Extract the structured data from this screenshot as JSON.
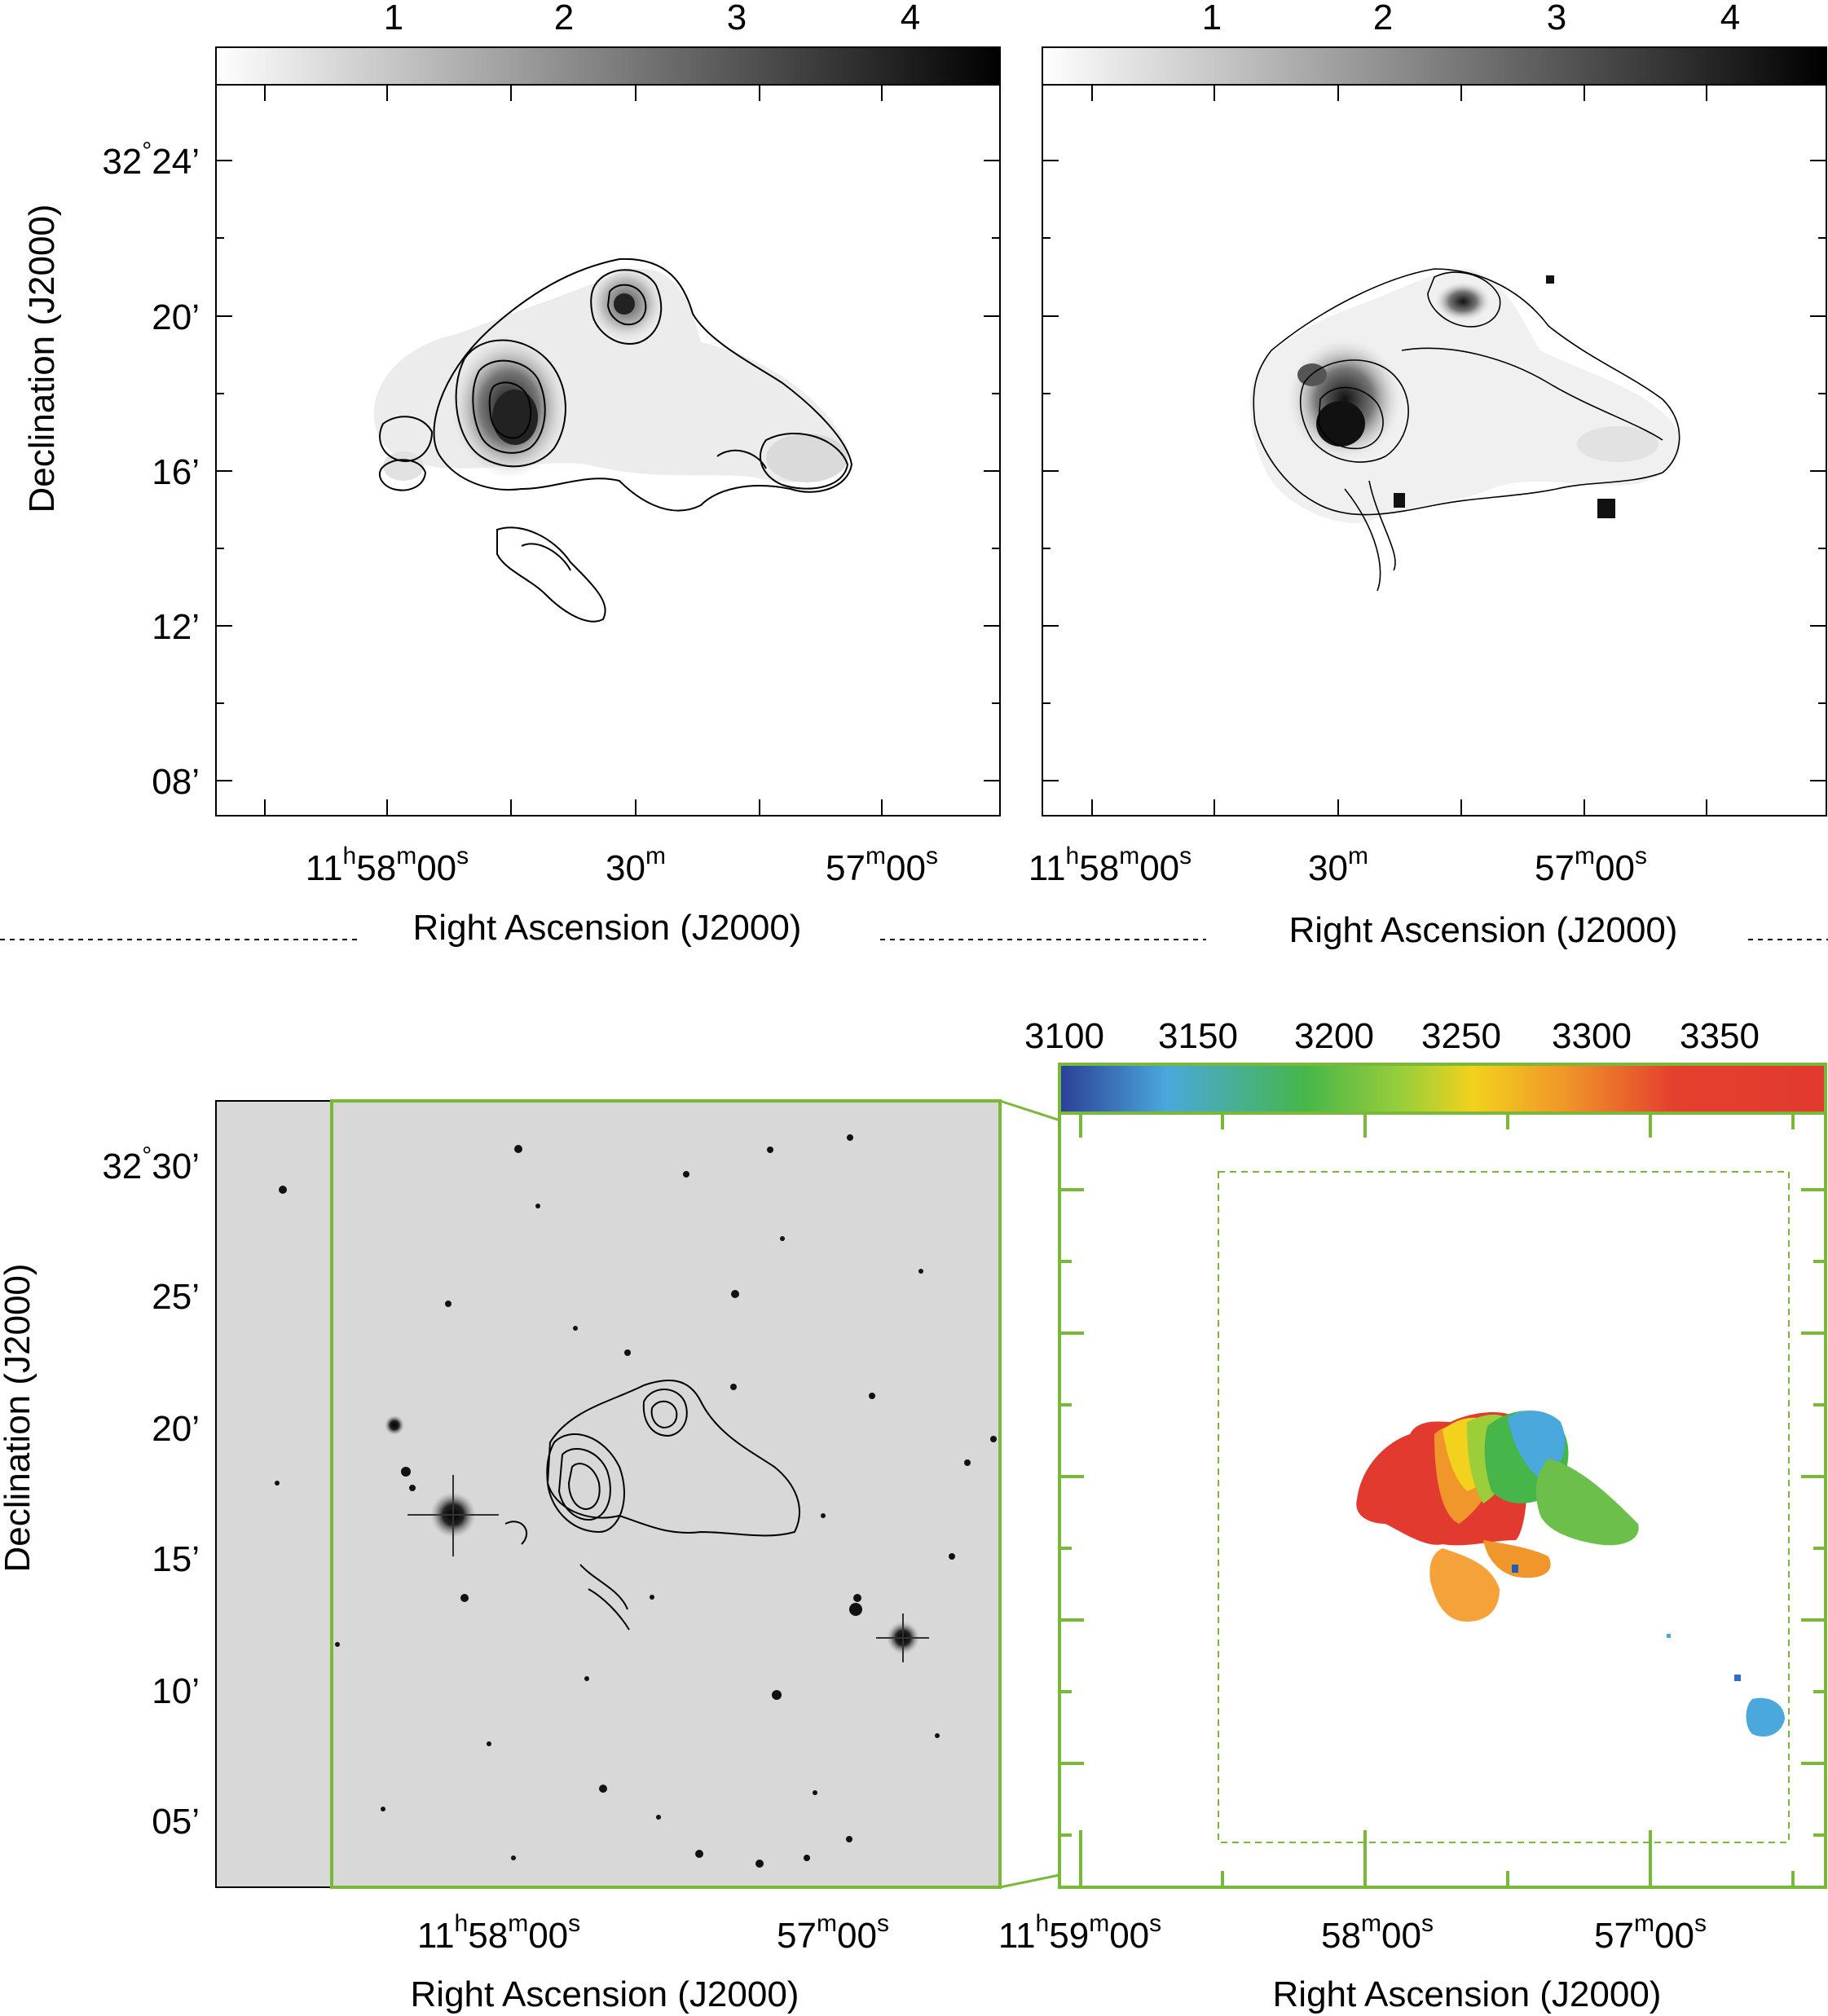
{
  "panels": {
    "top_left": {
      "colorbar_ticks": [
        "1",
        "2",
        "3",
        "4"
      ],
      "dec_ticks": [
        {
          "deg": "32",
          "min": "24’"
        },
        {
          "min": "20’"
        },
        {
          "min": "16’"
        },
        {
          "min": "12’"
        },
        {
          "min": "08’"
        }
      ],
      "ra_ticks": [
        {
          "h": "11",
          "m": "58",
          "s": "00"
        },
        {
          "m": "30"
        },
        {
          "m": "57",
          "s": "00"
        }
      ],
      "xlabel": "Right Ascension (J2000)",
      "ylabel": "Declination (J2000)"
    },
    "top_right": {
      "colorbar_ticks": [
        "1",
        "2",
        "3",
        "4"
      ],
      "ra_ticks": [
        {
          "h": "11",
          "m": "58",
          "s": "00"
        },
        {
          "m": "30"
        },
        {
          "m": "57",
          "s": "00"
        }
      ],
      "xlabel": "Right Ascension (J2000)"
    },
    "bottom_left": {
      "dec_ticks": [
        {
          "deg": "32",
          "min": "30’"
        },
        {
          "min": "25’"
        },
        {
          "min": "20’"
        },
        {
          "min": "15’"
        },
        {
          "min": "10’"
        },
        {
          "min": "05’"
        }
      ],
      "ra_ticks": [
        {
          "h": "11",
          "m": "58",
          "s": "00"
        },
        {
          "m": "57",
          "s": "00"
        }
      ],
      "xlabel": "Right Ascension (J2000)",
      "ylabel": "Declination (J2000)"
    },
    "bottom_right": {
      "colorbar_ticks": [
        "3100",
        "3150",
        "3200",
        "3250",
        "3300",
        "3350"
      ],
      "ra_ticks": [
        {
          "h": "11",
          "m": "59",
          "s": "00"
        },
        {
          "m": "58",
          "s": "00"
        },
        {
          "m": "57",
          "s": "00"
        }
      ],
      "xlabel": "Right Ascension (J2000)"
    }
  },
  "units": {
    "h": "h",
    "m": "m",
    "s": "s",
    "deg": "°"
  },
  "colors": {
    "frame": "#000000",
    "green": "#7ab83a",
    "optical_bg": "#d8d8d8",
    "vel_low": "#2c3e96",
    "vel_mid": "#3fb44a",
    "vel_high": "#e23a2e"
  }
}
